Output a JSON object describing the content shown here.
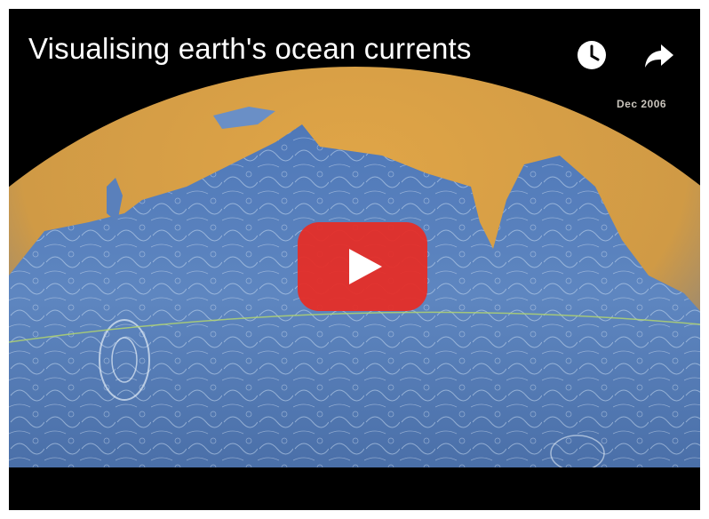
{
  "header": {
    "title": "Visualising earth's ocean currents"
  },
  "video": {
    "timestamp": "Dec 2006"
  }
}
